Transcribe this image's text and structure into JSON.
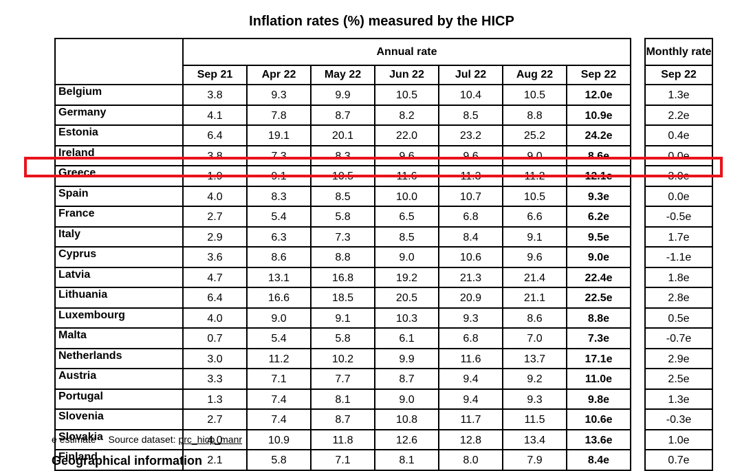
{
  "title": "Inflation rates (%) measured by the HICP",
  "annual_header": "Annual rate",
  "monthly_header": "Monthly rate",
  "columns": [
    "Sep 21",
    "Apr 22",
    "May 22",
    "Jun 22",
    "Jul 22",
    "Aug 22",
    "Sep 22"
  ],
  "monthly_column": "Sep 22",
  "rows": [
    {
      "country": "Belgium",
      "values": [
        "3.8",
        "9.3",
        "9.9",
        "10.5",
        "10.4",
        "10.5",
        "12.0e"
      ],
      "monthly": "1.3e"
    },
    {
      "country": "Germany",
      "values": [
        "4.1",
        "7.8",
        "8.7",
        "8.2",
        "8.5",
        "8.8",
        "10.9e"
      ],
      "monthly": "2.2e"
    },
    {
      "country": "Estonia",
      "values": [
        "6.4",
        "19.1",
        "20.1",
        "22.0",
        "23.2",
        "25.2",
        "24.2e"
      ],
      "monthly": "0.4e"
    },
    {
      "country": "Ireland",
      "values": [
        "3.8",
        "7.3",
        "8.3",
        "9.6",
        "9.6",
        "9.0",
        "8.6e"
      ],
      "monthly": "0.0e"
    },
    {
      "country": "Greece",
      "values": [
        "1.9",
        "9.1",
        "10.5",
        "11.6",
        "11.3",
        "11.2",
        "12.1e"
      ],
      "monthly": "3.0e"
    },
    {
      "country": "Spain",
      "values": [
        "4.0",
        "8.3",
        "8.5",
        "10.0",
        "10.7",
        "10.5",
        "9.3e"
      ],
      "monthly": "0.0e"
    },
    {
      "country": "France",
      "values": [
        "2.7",
        "5.4",
        "5.8",
        "6.5",
        "6.8",
        "6.6",
        "6.2e"
      ],
      "monthly": "-0.5e"
    },
    {
      "country": "Italy",
      "values": [
        "2.9",
        "6.3",
        "7.3",
        "8.5",
        "8.4",
        "9.1",
        "9.5e"
      ],
      "monthly": "1.7e"
    },
    {
      "country": "Cyprus",
      "values": [
        "3.6",
        "8.6",
        "8.8",
        "9.0",
        "10.6",
        "9.6",
        "9.0e"
      ],
      "monthly": "-1.1e"
    },
    {
      "country": "Latvia",
      "values": [
        "4.7",
        "13.1",
        "16.8",
        "19.2",
        "21.3",
        "21.4",
        "22.4e"
      ],
      "monthly": "1.8e"
    },
    {
      "country": "Lithuania",
      "values": [
        "6.4",
        "16.6",
        "18.5",
        "20.5",
        "20.9",
        "21.1",
        "22.5e"
      ],
      "monthly": "2.8e"
    },
    {
      "country": "Luxembourg",
      "values": [
        "4.0",
        "9.0",
        "9.1",
        "10.3",
        "9.3",
        "8.6",
        "8.8e"
      ],
      "monthly": "0.5e"
    },
    {
      "country": "Malta",
      "values": [
        "0.7",
        "5.4",
        "5.8",
        "6.1",
        "6.8",
        "7.0",
        "7.3e"
      ],
      "monthly": "-0.7e"
    },
    {
      "country": "Netherlands",
      "values": [
        "3.0",
        "11.2",
        "10.2",
        "9.9",
        "11.6",
        "13.7",
        "17.1e"
      ],
      "monthly": "2.9e"
    },
    {
      "country": "Austria",
      "values": [
        "3.3",
        "7.1",
        "7.7",
        "8.7",
        "9.4",
        "9.2",
        "11.0e"
      ],
      "monthly": "2.5e"
    },
    {
      "country": "Portugal",
      "values": [
        "1.3",
        "7.4",
        "8.1",
        "9.0",
        "9.4",
        "9.3",
        "9.8e"
      ],
      "monthly": "1.3e"
    },
    {
      "country": "Slovenia",
      "values": [
        "2.7",
        "7.4",
        "8.7",
        "10.8",
        "11.7",
        "11.5",
        "10.6e"
      ],
      "monthly": "-0.3e"
    },
    {
      "country": "Slovakia",
      "values": [
        "4.0",
        "10.9",
        "11.8",
        "12.6",
        "12.8",
        "13.4",
        "13.6e"
      ],
      "monthly": "1.0e"
    },
    {
      "country": "Finland",
      "values": [
        "2.1",
        "5.8",
        "7.1",
        "8.1",
        "8.0",
        "7.9",
        "8.4e"
      ],
      "monthly": "0.7e"
    }
  ],
  "footnote": {
    "estimate": "e estimate",
    "source_label": "Source dataset:",
    "source_link": "prc_hicp_manr"
  },
  "section_heading": "Geographical information",
  "highlight_color": "#e8131b"
}
